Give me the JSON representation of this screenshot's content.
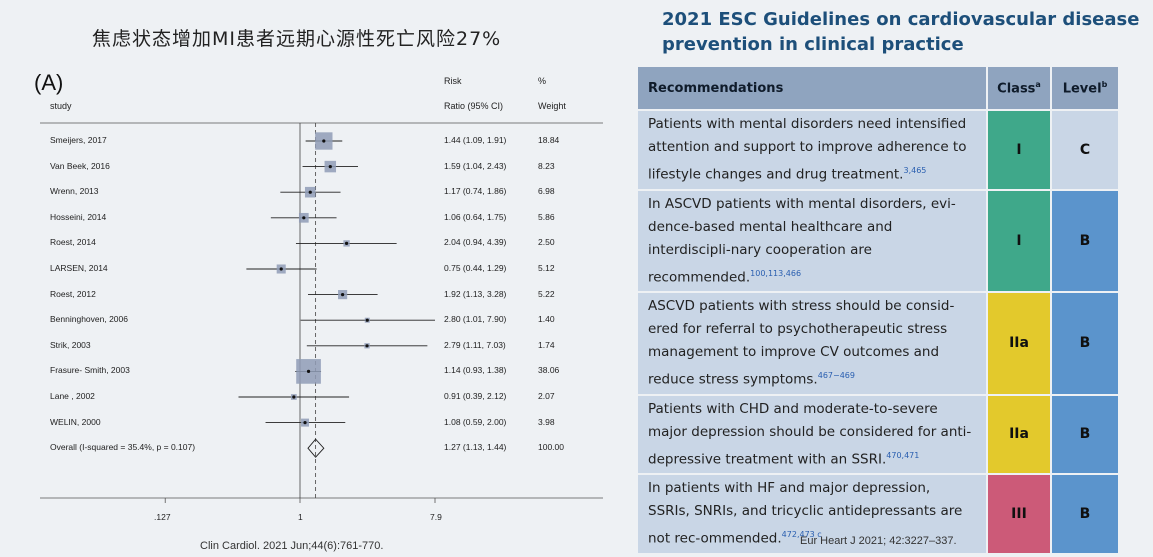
{
  "left": {
    "title": "焦虑状态增加MI患者远期心源性死亡风险27%",
    "panel_label": "(A)",
    "headers": {
      "study": "study",
      "risk_line1": "Risk",
      "risk_line2": "Ratio (95% CI)",
      "pct_line1": "%",
      "pct_line2": "Weight"
    },
    "citation": "Clin Cardiol. 2021 Jun;44(6):761-770."
  },
  "chart_data": {
    "type": "forest",
    "title": "",
    "xscale": "log",
    "xlim": [
      0.127,
      7.9
    ],
    "x_ticks": [
      ".127",
      "1",
      "7.9"
    ],
    "x_tick_values": [
      0.127,
      1,
      7.9
    ],
    "null_line": 1,
    "overall_line": 1.27,
    "studies": [
      {
        "study": "Smeijers, 2017",
        "rr": 1.44,
        "lo": 1.09,
        "hi": 1.91,
        "ci_label": "1.44 (1.09, 1.91)",
        "weight": "18.84",
        "w": 18.84
      },
      {
        "study": "Van Beek, 2016",
        "rr": 1.59,
        "lo": 1.04,
        "hi": 2.43,
        "ci_label": "1.59 (1.04, 2.43)",
        "weight": "8.23",
        "w": 8.23
      },
      {
        "study": "Wrenn, 2013",
        "rr": 1.17,
        "lo": 0.74,
        "hi": 1.86,
        "ci_label": "1.17 (0.74, 1.86)",
        "weight": "6.98",
        "w": 6.98
      },
      {
        "study": "Hosseini, 2014",
        "rr": 1.06,
        "lo": 0.64,
        "hi": 1.75,
        "ci_label": "1.06 (0.64, 1.75)",
        "weight": "5.86",
        "w": 5.86
      },
      {
        "study": "Roest, 2014",
        "rr": 2.04,
        "lo": 0.94,
        "hi": 4.39,
        "ci_label": "2.04 (0.94, 4.39)",
        "weight": "2.50",
        "w": 2.5
      },
      {
        "study": "LARSEN, 2014",
        "rr": 0.75,
        "lo": 0.44,
        "hi": 1.29,
        "ci_label": "0.75 (0.44, 1.29)",
        "weight": "5.12",
        "w": 5.12
      },
      {
        "study": "Roest, 2012",
        "rr": 1.92,
        "lo": 1.13,
        "hi": 3.28,
        "ci_label": "1.92 (1.13, 3.28)",
        "weight": "5.22",
        "w": 5.22
      },
      {
        "study": "Benninghoven, 2006",
        "rr": 2.8,
        "lo": 1.01,
        "hi": 7.9,
        "ci_label": "2.80 (1.01, 7.90)",
        "weight": "1.40",
        "w": 1.4
      },
      {
        "study": "Strik, 2003",
        "rr": 2.79,
        "lo": 1.11,
        "hi": 7.03,
        "ci_label": "2.79 (1.11, 7.03)",
        "weight": "1.74",
        "w": 1.74
      },
      {
        "study": "Frasure- Smith, 2003",
        "rr": 1.14,
        "lo": 0.93,
        "hi": 1.38,
        "ci_label": "1.14 (0.93, 1.38)",
        "weight": "38.06",
        "w": 38.06
      },
      {
        "study": "Lane , 2002",
        "rr": 0.91,
        "lo": 0.39,
        "hi": 2.12,
        "ci_label": "0.91 (0.39, 2.12)",
        "weight": "2.07",
        "w": 2.07
      },
      {
        "study": "WELIN, 2000",
        "rr": 1.08,
        "lo": 0.59,
        "hi": 2.0,
        "ci_label": "1.08 (0.59, 2.00)",
        "weight": "3.98",
        "w": 3.98
      }
    ],
    "overall": {
      "study": "Overall  (I-squared = 35.4%, p = 0.107)",
      "rr": 1.27,
      "lo": 1.13,
      "hi": 1.44,
      "ci_label": "1.27 (1.13, 1.44)",
      "weight": "100.00"
    }
  },
  "right": {
    "title": "2021 ESC Guidelines on cardiovascular disease prevention in clinical practice",
    "table_headers": {
      "recommendations": "Recommendations",
      "class": "Class",
      "class_sup": "a",
      "level": "Level",
      "level_sup": "b"
    },
    "rows": [
      {
        "text": "Patients with mental disorders need intensified attention and support to improve adherence to lifestyle changes and drug treatment.",
        "ref": "3,465",
        "class": "I",
        "level": "C",
        "class_color": "#3fa88a",
        "level_color": "#c9d6e6"
      },
      {
        "text": "In ASCVD patients with mental disorders, evi-dence-based mental healthcare and interdiscipli-nary cooperation are recommended.",
        "ref": "100,113,466",
        "class": "I",
        "level": "B",
        "class_color": "#3fa88a",
        "level_color": "#5b94cc"
      },
      {
        "text": "ASCVD patients with stress should be consid-ered for referral to psychotherapeutic stress management to improve CV outcomes and reduce stress symptoms.",
        "ref": "467−469",
        "class": "IIa",
        "level": "B",
        "class_color": "#e3c92c",
        "level_color": "#5b94cc"
      },
      {
        "text": "Patients with CHD and moderate-to-severe major depression should be considered for anti-depressive treatment with an SSRI.",
        "ref": "470,471",
        "class": "IIa",
        "level": "B",
        "class_color": "#e3c92c",
        "level_color": "#5b94cc"
      },
      {
        "text": "In patients with HF and major depression, SSRIs, SNRIs, and tricyclic antidepressants are not rec-ommended.",
        "ref": "472,473 c",
        "class": "III",
        "level": "B",
        "class_color": "#cc5a78",
        "level_color": "#5b94cc"
      }
    ],
    "citation": "Eur Heart J 2021; 42:3227–337."
  }
}
